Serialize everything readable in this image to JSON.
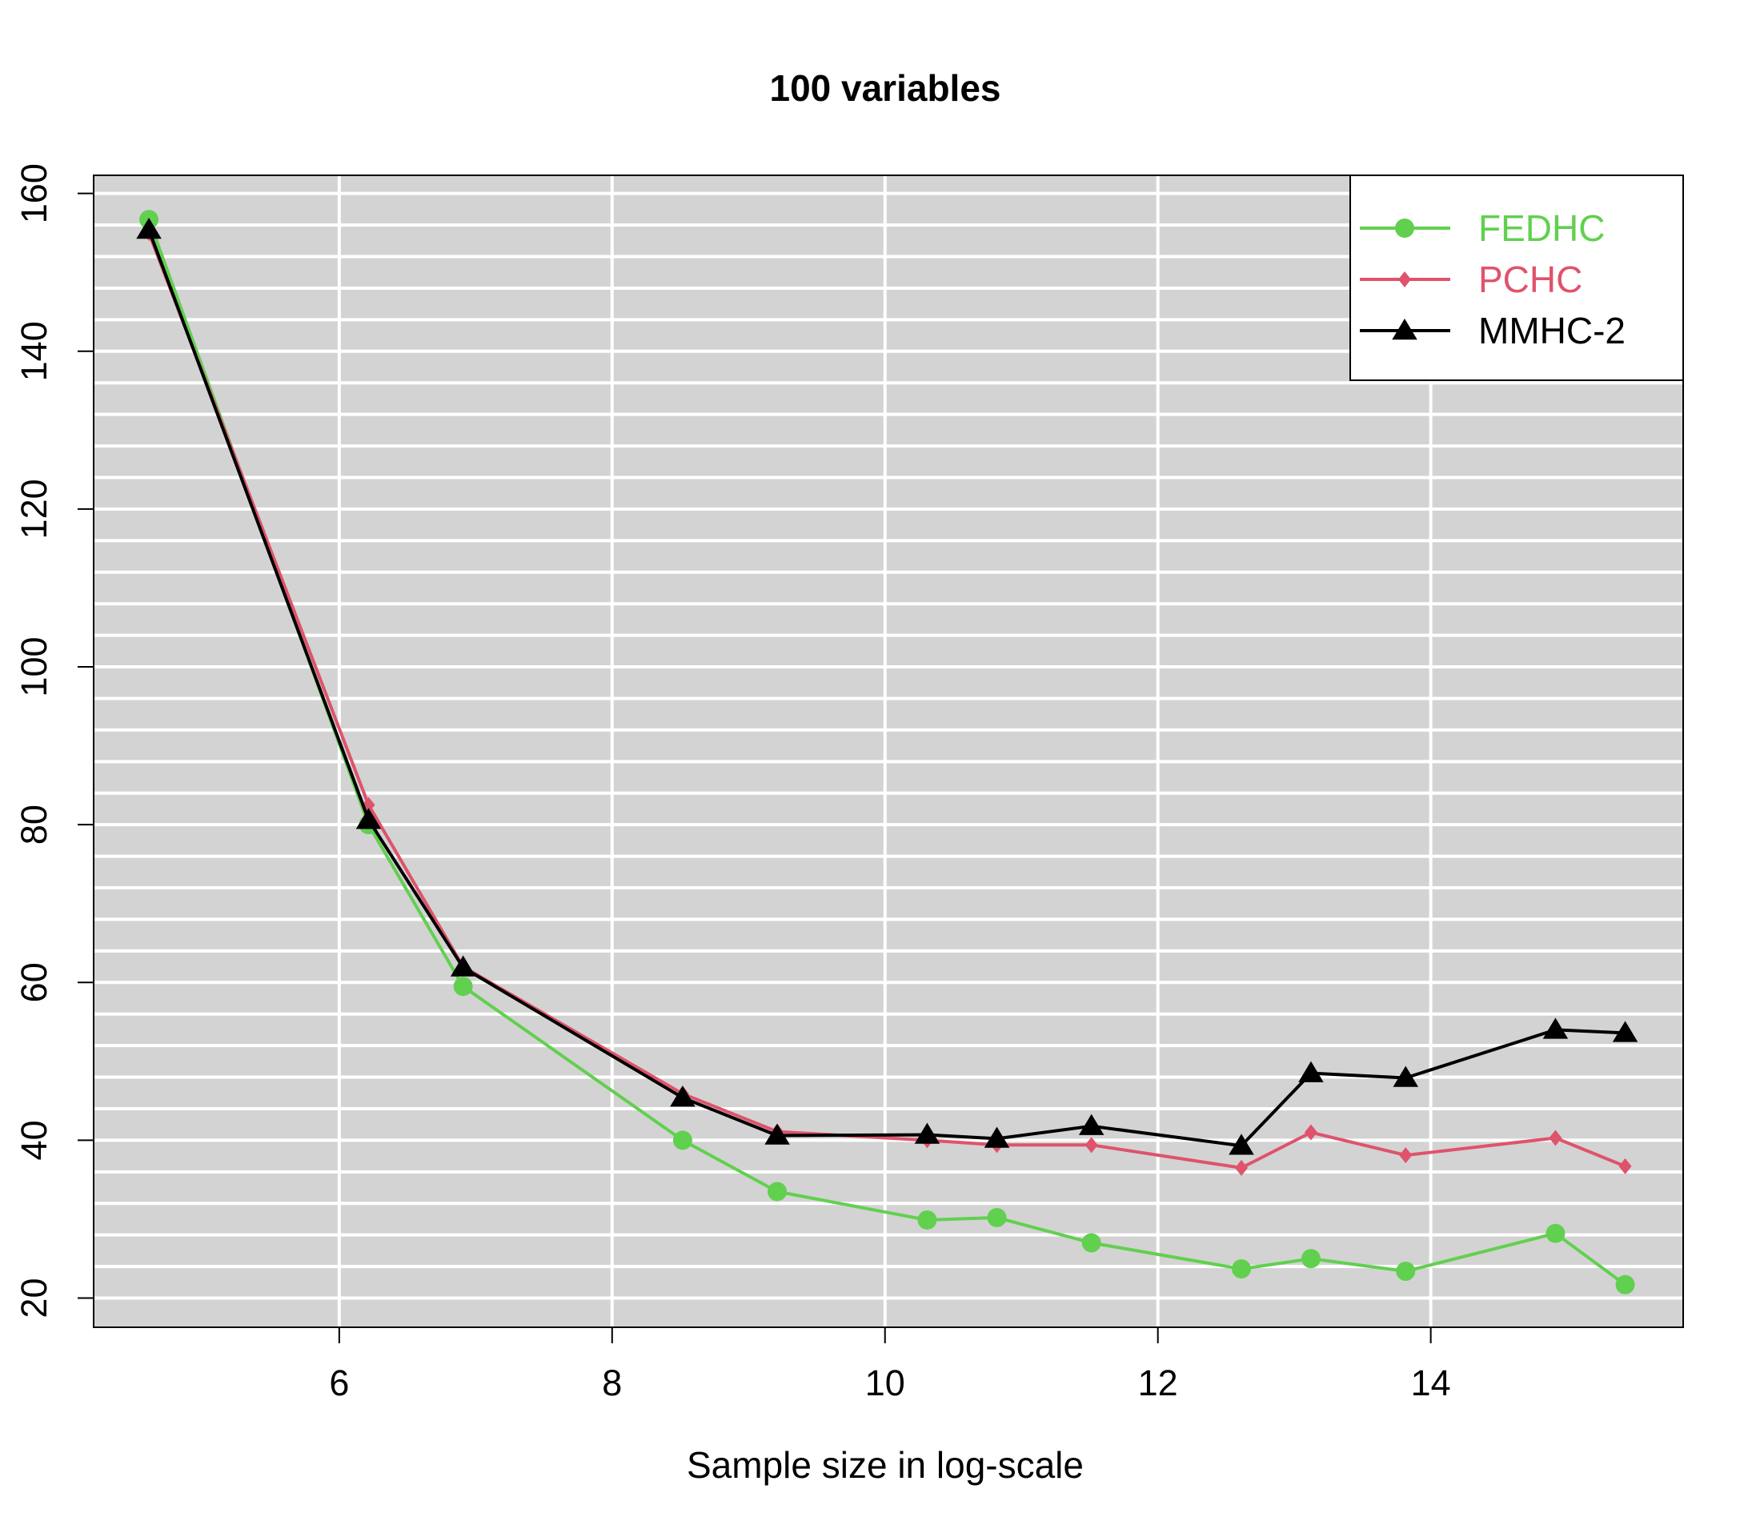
{
  "chart_data": {
    "type": "line",
    "title": "100 variables",
    "xlabel": "Sample size in log-scale",
    "ylabel": "",
    "xlim": [
      4.2,
      15.85
    ],
    "ylim": [
      16.3,
      162.3
    ],
    "grid": true,
    "legend_position": "top-right",
    "x_ticks": [
      6,
      8,
      10,
      12,
      14
    ],
    "y_ticks": [
      20,
      40,
      60,
      80,
      100,
      120,
      140,
      160
    ],
    "x": [
      4.605,
      6.215,
      6.908,
      8.517,
      9.21,
      10.309,
      10.82,
      11.513,
      12.612,
      13.122,
      13.816,
      14.914,
      15.425
    ],
    "series": [
      {
        "name": "FEDHC",
        "color": "#61D04F",
        "marker": "circle",
        "values": [
          156.7,
          80.0,
          59.5,
          40.0,
          33.5,
          29.9,
          30.2,
          27.0,
          23.7,
          25.0,
          23.4,
          28.2,
          21.7
        ]
      },
      {
        "name": "PCHC",
        "color": "#DF536B",
        "marker": "diamond",
        "values": [
          155.0,
          82.5,
          62.0,
          45.9,
          41.1,
          40.0,
          39.4,
          39.4,
          36.5,
          41.0,
          38.1,
          40.3,
          36.7
        ]
      },
      {
        "name": "MMHC-2",
        "color": "#000000",
        "marker": "triangle",
        "values": [
          155.4,
          80.6,
          61.9,
          45.4,
          40.6,
          40.7,
          40.2,
          41.8,
          39.3,
          48.5,
          47.9,
          54.0,
          53.6
        ]
      }
    ]
  }
}
